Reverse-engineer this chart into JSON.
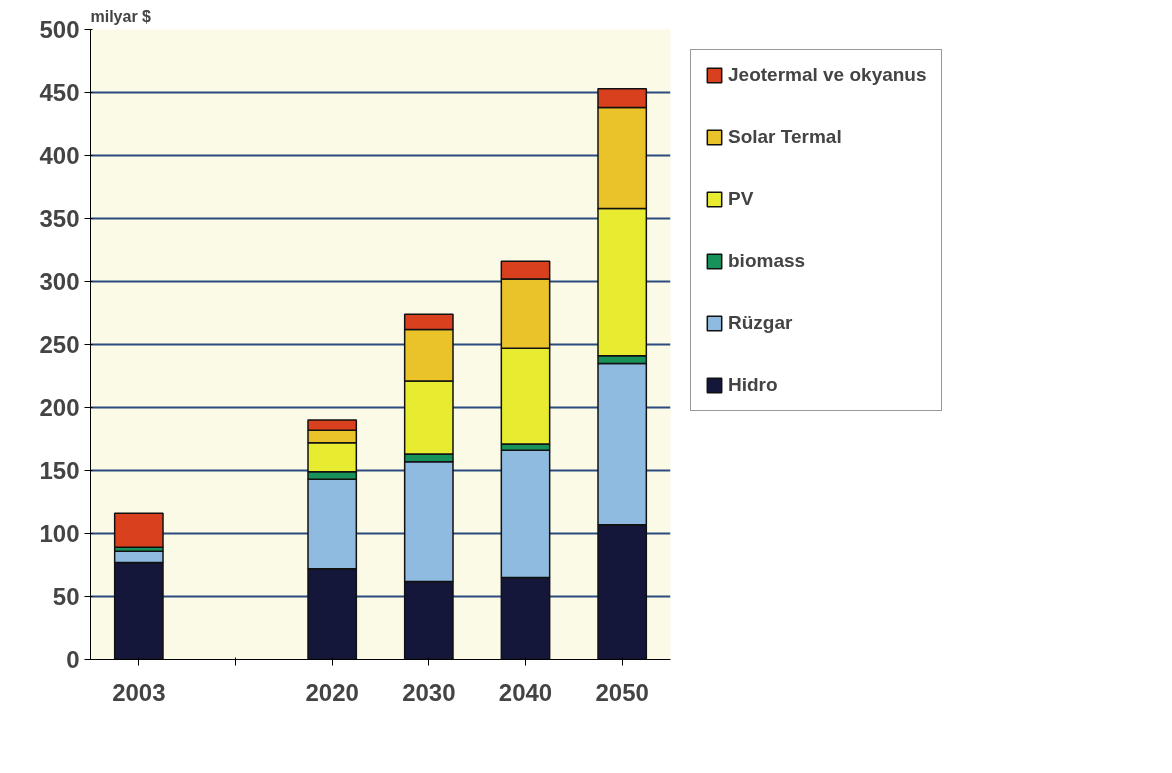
{
  "chart_data": {
    "type": "bar",
    "stacked": true,
    "ylabel": "milyar $",
    "categories": [
      "2003",
      null,
      "2020",
      "2030",
      "2040",
      "2050"
    ],
    "series": [
      {
        "name": "Hidro",
        "color": "#15173a",
        "values": [
          77,
          null,
          72,
          62,
          65,
          107
        ]
      },
      {
        "name": "Rüzgar",
        "color": "#8fbbe0",
        "values": [
          9,
          null,
          71,
          95,
          101,
          128
        ]
      },
      {
        "name": "biomass",
        "color": "#17925a",
        "values": [
          3,
          null,
          6,
          6,
          5,
          6
        ]
      },
      {
        "name": "PV",
        "color": "#e8ec30",
        "values": [
          null,
          null,
          23,
          58,
          76,
          117
        ]
      },
      {
        "name": "Solar Termal",
        "color": "#eac22a",
        "values": [
          null,
          null,
          10,
          41,
          55,
          80
        ]
      },
      {
        "name": "Jeotermal ve okyanus",
        "color": "#d9411e",
        "values": [
          27,
          null,
          8,
          12,
          14,
          15
        ]
      }
    ],
    "ylim": [
      0,
      500
    ],
    "yticks": [
      0,
      50,
      100,
      150,
      200,
      250,
      300,
      350,
      400,
      450,
      500
    ],
    "grid": "y",
    "legend": "right"
  }
}
